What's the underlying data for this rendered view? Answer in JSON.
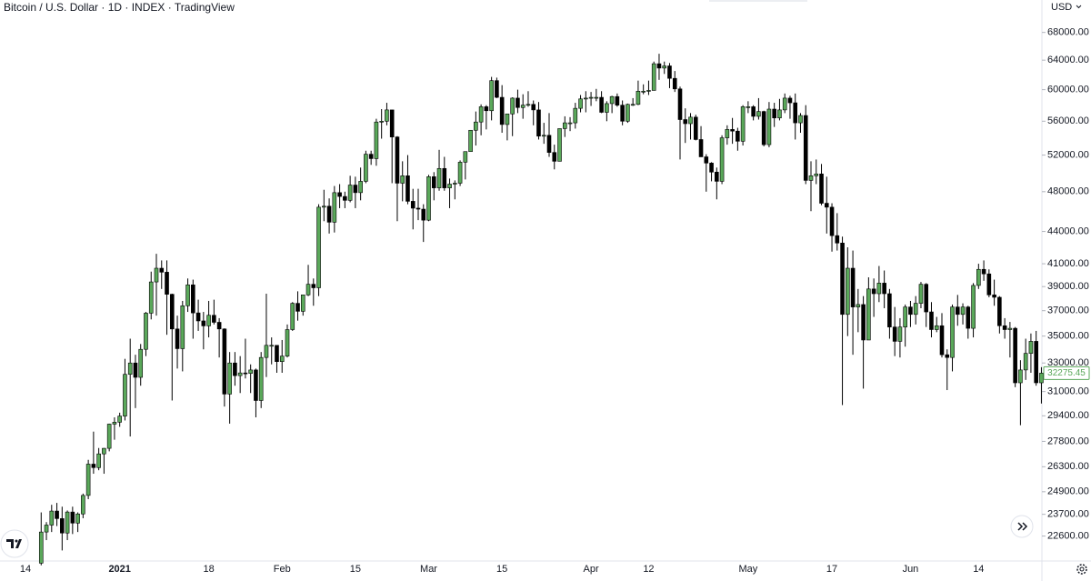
{
  "chart_data": {
    "type": "candlestick",
    "title": "Bitcoin / U.S. Dollar · 1D · INDEX · TradingView",
    "currency": "USD",
    "log_scale": true,
    "grid": false,
    "up_color": "#5aa85a",
    "down_color": "#000000",
    "ylim": [
      21400,
      73000
    ],
    "yticks": [
      {
        "value": 22600,
        "label": "22600.00"
      },
      {
        "value": 23700,
        "label": "23700.00"
      },
      {
        "value": 24900,
        "label": "24900.00"
      },
      {
        "value": 26300,
        "label": "26300.00"
      },
      {
        "value": 27800,
        "label": "27800.00"
      },
      {
        "value": 29400,
        "label": "29400.00"
      },
      {
        "value": 31000,
        "label": "31000.00"
      },
      {
        "value": 33000,
        "label": "33000.00"
      },
      {
        "value": 35000,
        "label": "35000.00"
      },
      {
        "value": 37000,
        "label": "37000.00"
      },
      {
        "value": 39000,
        "label": "39000.00"
      },
      {
        "value": 41000,
        "label": "41000.00"
      },
      {
        "value": 44000,
        "label": "44000.00"
      },
      {
        "value": 48000,
        "label": "48000.00"
      },
      {
        "value": 52000,
        "label": "52000.00"
      },
      {
        "value": 56000,
        "label": "56000.00"
      },
      {
        "value": 60000,
        "label": "60000.00"
      },
      {
        "value": 64000,
        "label": "64000.00"
      },
      {
        "value": 68000,
        "label": "68000.00"
      }
    ],
    "categories": [
      "14",
      null,
      null,
      null,
      null,
      null,
      null,
      null,
      null,
      null,
      null,
      null,
      null,
      null,
      null,
      null,
      null,
      null,
      "2021",
      null,
      null,
      null,
      null,
      null,
      null,
      null,
      null,
      null,
      null,
      null,
      null,
      null,
      null,
      null,
      null,
      "18",
      null,
      null,
      null,
      null,
      null,
      null,
      null,
      null,
      null,
      null,
      null,
      null,
      null,
      "Feb",
      null,
      null,
      null,
      null,
      null,
      null,
      null,
      null,
      null,
      null,
      null,
      null,
      null,
      "15",
      null,
      null,
      null,
      null,
      null,
      null,
      null,
      null,
      null,
      null,
      null,
      null,
      null,
      "Mar",
      null,
      null,
      null,
      null,
      null,
      null,
      null,
      null,
      null,
      null,
      null,
      null,
      null,
      "15",
      null,
      null,
      null,
      null,
      null,
      null,
      null,
      null,
      null,
      null,
      null,
      null,
      null,
      null,
      null,
      null,
      "Apr",
      null,
      null,
      null,
      null,
      null,
      null,
      null,
      null,
      null,
      null,
      "12",
      null,
      null,
      null,
      null,
      null,
      null,
      null,
      null,
      null,
      null,
      null,
      null,
      null,
      null,
      null,
      null,
      null,
      null,
      "May",
      null,
      null,
      null,
      null,
      null,
      null,
      null,
      null,
      null,
      null,
      null,
      null,
      null,
      null,
      null,
      "17",
      null,
      null,
      null,
      null,
      null,
      null,
      null,
      null,
      null,
      null,
      null,
      null,
      null,
      null,
      "Jun",
      null,
      null,
      null,
      null,
      null,
      null,
      null,
      null,
      null,
      null,
      null,
      null,
      "14",
      null,
      null,
      null,
      null,
      null,
      null,
      null,
      null,
      null,
      null,
      null,
      null
    ],
    "open": [
      null,
      null,
      null,
      21300,
      22800,
      23150,
      23870,
      23480,
      22750,
      23820,
      23250,
      23720,
      24700,
      26450,
      26250,
      27050,
      27380,
      28870,
      28990,
      29380,
      32190,
      33000,
      31980,
      34000,
      36800,
      39400,
      40600,
      40250,
      38350,
      35550,
      34050,
      37400,
      39150,
      36820,
      36180,
      35790,
      36630,
      36070,
      35550,
      30830,
      33000,
      32100,
      32290,
      32260,
      32500,
      30400,
      33400,
      34300,
      34300,
      33100,
      33500,
      35500,
      37600,
      36950,
      38300,
      39200,
      38900,
      46400,
      46500,
      44900,
      47900,
      47500,
      47100,
      48700,
      47900,
      49100,
      52100,
      51600,
      55900,
      56000,
      57400,
      54100,
      48900,
      49700,
      47000,
      46300,
      46200,
      45100,
      49600,
      48400,
      50500,
      48400,
      48800,
      48900,
      51200,
      52400,
      54900,
      55900,
      57800,
      57300,
      61200,
      59000,
      55600,
      56900,
      58900,
      57700,
      58000,
      58100,
      57400,
      54200,
      54300,
      52300,
      51300,
      55100,
      55800,
      55800,
      57600,
      58800,
      58900,
      59000,
      59000,
      57100,
      58200,
      59100,
      58000,
      56000,
      58100,
      58100,
      59800,
      59800,
      59900,
      63500,
      62900,
      63200,
      61500,
      60100,
      56200,
      55700,
      56500,
      53800,
      51800,
      51100,
      50100,
      49100,
      54000,
      55000,
      54800,
      53600,
      57800,
      57800,
      56600,
      57200,
      53200,
      57500,
      56400,
      57400,
      58900,
      58300,
      55800,
      56700,
      49200,
      49700,
      49900,
      46800,
      46400,
      43600,
      42900,
      36700,
      40600,
      37300,
      37500,
      34700,
      38800,
      38400,
      39300,
      38400,
      35700,
      34600,
      35700,
      37300,
      36700,
      37600,
      39200,
      36900,
      35500,
      35800,
      33600,
      33400,
      37300,
      36700,
      37300,
      35600,
      39100,
      40500,
      40100,
      38300,
      38100,
      35800,
      35500,
      35600,
      31600,
      32500,
      33700,
      34600,
      31600
    ],
    "high": [
      null,
      null,
      null,
      23800,
      23300,
      24200,
      24300,
      24100,
      23900,
      24100,
      23800,
      24800,
      26700,
      28400,
      27400,
      27400,
      28900,
      29300,
      29600,
      33300,
      34800,
      33600,
      34400,
      36900,
      40300,
      41900,
      41300,
      41300,
      38400,
      36600,
      37800,
      39700,
      39600,
      37900,
      36900,
      37800,
      37900,
      36400,
      35600,
      33800,
      33800,
      33500,
      34800,
      32900,
      32600,
      33800,
      38400,
      34900,
      34300,
      34700,
      35900,
      37700,
      38600,
      38300,
      40900,
      39700,
      46700,
      48200,
      47300,
      48600,
      48800,
      48000,
      49700,
      49600,
      50600,
      52500,
      52500,
      56300,
      57500,
      58300,
      57400,
      54200,
      51300,
      52000,
      48300,
      48300,
      46700,
      49800,
      50100,
      52600,
      51800,
      49400,
      49200,
      51400,
      52400,
      54900,
      57200,
      58100,
      58000,
      61700,
      61600,
      60600,
      56900,
      59000,
      60000,
      59400,
      59800,
      58600,
      58400,
      55800,
      57000,
      53200,
      55100,
      56600,
      56500,
      58300,
      59300,
      59800,
      59700,
      60100,
      59800,
      58500,
      59200,
      59500,
      58600,
      58200,
      58900,
      61200,
      60700,
      61200,
      63800,
      64900,
      63800,
      63600,
      62500,
      60400,
      57600,
      57000,
      56800,
      55400,
      52100,
      51200,
      50600,
      54300,
      55500,
      56400,
      55200,
      58000,
      58500,
      58000,
      58900,
      57300,
      58400,
      58300,
      58800,
      59500,
      59200,
      59500,
      57000,
      58000,
      51300,
      51500,
      51000,
      49600,
      46800,
      45800,
      43500,
      42500,
      42200,
      38800,
      38200,
      39800,
      39700,
      40800,
      40400,
      38800,
      37300,
      36400,
      37500,
      37800,
      38200,
      39400,
      39300,
      37700,
      36500,
      36800,
      34000,
      37500,
      38300,
      37600,
      37400,
      39300,
      41000,
      41300,
      40500,
      39600,
      38200,
      36400,
      36100,
      35700,
      33200,
      34800,
      35200,
      35400,
      32700
    ],
    "low": [
      null,
      null,
      null,
      21200,
      22400,
      22800,
      23100,
      21900,
      22400,
      22700,
      22800,
      23500,
      24500,
      25900,
      26100,
      25900,
      27200,
      27900,
      28700,
      29100,
      28100,
      29900,
      31400,
      33500,
      36300,
      36600,
      38800,
      35100,
      30400,
      32600,
      32400,
      36900,
      34800,
      35400,
      34000,
      34900,
      35900,
      33400,
      30000,
      28900,
      31400,
      30900,
      31900,
      30900,
      29300,
      29900,
      32000,
      32900,
      32300,
      32300,
      33400,
      35400,
      36200,
      36600,
      38200,
      37400,
      38200,
      45000,
      43800,
      43900,
      46300,
      46300,
      46900,
      46300,
      47100,
      48900,
      50900,
      50800,
      53900,
      55500,
      48900,
      45000,
      47000,
      46700,
      44200,
      45100,
      43000,
      45000,
      47100,
      48100,
      48100,
      46300,
      47200,
      48600,
      49300,
      52400,
      53100,
      54300,
      55000,
      56100,
      58900,
      54600,
      53700,
      54200,
      57000,
      56300,
      57800,
      55500,
      53800,
      53300,
      51800,
      50400,
      51300,
      54100,
      54800,
      55100,
      57100,
      57100,
      57900,
      58500,
      57000,
      56000,
      57000,
      57800,
      55500,
      55800,
      57900,
      58000,
      59400,
      59300,
      59900,
      61300,
      62100,
      60200,
      59700,
      51500,
      53400,
      53800,
      53700,
      51800,
      48000,
      49100,
      47200,
      48800,
      53200,
      53300,
      52500,
      53100,
      57000,
      56100,
      56200,
      53000,
      52900,
      55300,
      56100,
      57000,
      56300,
      53800,
      54600,
      48800,
      46000,
      48800,
      46600,
      43800,
      42100,
      42200,
      30100,
      35000,
      33600,
      35300,
      31200,
      34700,
      36500,
      37700,
      37200,
      34800,
      33500,
      33400,
      34200,
      35700,
      35900,
      37200,
      35700,
      34900,
      35300,
      33400,
      31100,
      32400,
      35800,
      35900,
      34800,
      34900,
      38800,
      39500,
      38100,
      37400,
      35200,
      34800,
      33400,
      31300,
      28800,
      31800,
      32300,
      31400,
      30200
    ],
    "close": [
      null,
      null,
      null,
      22800,
      23150,
      23870,
      23480,
      22750,
      23820,
      23250,
      23720,
      24700,
      26450,
      26250,
      27050,
      27380,
      28870,
      28990,
      29380,
      32190,
      33000,
      31980,
      34000,
      36800,
      39400,
      40600,
      40250,
      38350,
      35550,
      34050,
      37400,
      39150,
      36820,
      36180,
      35790,
      36630,
      36070,
      35550,
      30830,
      33000,
      32100,
      32290,
      32260,
      32500,
      30400,
      33400,
      34300,
      34300,
      33100,
      33500,
      35500,
      37600,
      36950,
      38300,
      39200,
      38900,
      46400,
      46500,
      44900,
      47900,
      47500,
      47100,
      48700,
      47900,
      49100,
      52100,
      51600,
      55900,
      56000,
      57400,
      54100,
      48900,
      49700,
      47000,
      46300,
      46200,
      45100,
      49600,
      48400,
      50500,
      48400,
      48800,
      48900,
      51200,
      52400,
      54900,
      55900,
      57800,
      57300,
      61200,
      59000,
      55600,
      56900,
      58900,
      57700,
      58000,
      58100,
      57400,
      54200,
      54300,
      52300,
      51300,
      55100,
      55800,
      55800,
      57600,
      58800,
      58900,
      59000,
      59000,
      57100,
      58200,
      59100,
      58000,
      56000,
      58100,
      58100,
      59800,
      59800,
      59900,
      63500,
      62900,
      63200,
      61500,
      60100,
      56200,
      55700,
      56500,
      53800,
      51800,
      51100,
      50100,
      49100,
      54000,
      55000,
      54800,
      53600,
      57800,
      57800,
      56600,
      57200,
      53200,
      57500,
      56400,
      57400,
      58900,
      58300,
      55800,
      56700,
      49200,
      49700,
      49900,
      46800,
      46400,
      43600,
      42900,
      36700,
      40600,
      37300,
      37500,
      34700,
      38800,
      38400,
      39300,
      38400,
      35700,
      34600,
      35700,
      37300,
      36700,
      37600,
      39200,
      36900,
      35500,
      35800,
      33600,
      33400,
      37300,
      36700,
      37300,
      35600,
      39100,
      40500,
      40100,
      38300,
      38100,
      35800,
      35500,
      35600,
      31600,
      32500,
      33700,
      34600,
      31600,
      32275.45
    ]
  }
}
